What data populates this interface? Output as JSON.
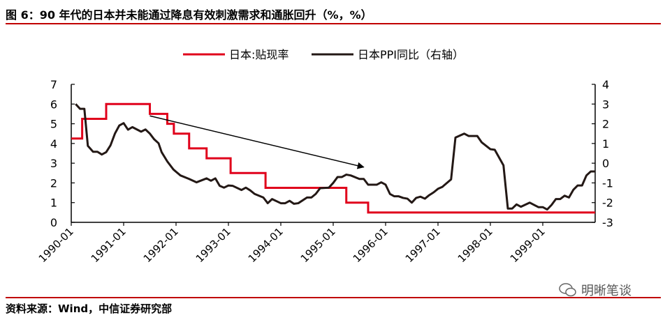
{
  "title": "图 6：90 年代的日本并未能通过降息有效刺激需求和通胀回升（%，%）",
  "source": "资料来源：Wind，中信证券研究部",
  "watermark": "明晰笔谈",
  "colors": {
    "rate": "#e0001b",
    "ppi": "#231815",
    "rule": "#c00000"
  },
  "chart_data": {
    "type": "line",
    "title": "90 年代的日本并未能通过降息有效刺激需求和通胀回升",
    "x_unit": "months since 1990-01",
    "xlim": [
      0,
      120
    ],
    "x_tick_labels": [
      "1990-01",
      "1991-01",
      "1992-01",
      "1993-01",
      "1994-01",
      "1995-01",
      "1996-01",
      "1997-01",
      "1998-01",
      "1999-01"
    ],
    "left_axis": {
      "ylim": [
        0,
        7
      ],
      "ticks": [
        "0",
        "1",
        "2",
        "3",
        "4",
        "5",
        "6",
        "7"
      ]
    },
    "right_axis": {
      "ylim": [
        -3,
        4
      ],
      "ticks": [
        "-3",
        "-2",
        "-1",
        "0",
        "1",
        "2",
        "3",
        "4"
      ]
    },
    "legend": {
      "placement": "top-center",
      "items": [
        "日本:贴现率",
        "日本PPI同比（右轴）"
      ]
    },
    "series": [
      {
        "name": "日本:贴现率",
        "axis": "left",
        "step": true,
        "points": [
          [
            0,
            4.25
          ],
          [
            2.5,
            5.25
          ],
          [
            8,
            6.0
          ],
          [
            18,
            5.5
          ],
          [
            22,
            5.0
          ],
          [
            23.5,
            4.5
          ],
          [
            27,
            3.75
          ],
          [
            31,
            3.25
          ],
          [
            36.5,
            2.5
          ],
          [
            44.5,
            1.75
          ],
          [
            63,
            1.0
          ],
          [
            68,
            0.5
          ],
          [
            120,
            0.5
          ]
        ]
      },
      {
        "name": "日本PPI同比（右轴）",
        "axis": "right",
        "step": false,
        "points": [
          [
            1,
            3.0
          ],
          [
            2,
            2.76
          ],
          [
            3,
            2.76
          ],
          [
            3.8,
            0.88
          ],
          [
            5,
            0.58
          ],
          [
            6,
            0.58
          ],
          [
            7,
            0.44
          ],
          [
            8,
            0.56
          ],
          [
            9,
            0.91
          ],
          [
            10,
            1.5
          ],
          [
            11,
            1.91
          ],
          [
            12,
            2.03
          ],
          [
            13,
            1.7
          ],
          [
            14,
            1.83
          ],
          [
            16,
            1.6
          ],
          [
            17,
            1.71
          ],
          [
            18,
            1.5
          ],
          [
            19,
            1.21
          ],
          [
            20,
            1.01
          ],
          [
            20.7,
            0.56
          ],
          [
            22,
            0.09
          ],
          [
            23.4,
            -0.32
          ],
          [
            25,
            -0.62
          ],
          [
            27,
            -0.8
          ],
          [
            28.7,
            -0.97
          ],
          [
            31,
            -0.77
          ],
          [
            32,
            -0.89
          ],
          [
            33,
            -0.77
          ],
          [
            34,
            -1.15
          ],
          [
            35,
            -1.24
          ],
          [
            36,
            -1.13
          ],
          [
            37,
            -1.15
          ],
          [
            39,
            -1.36
          ],
          [
            40,
            -1.24
          ],
          [
            41,
            -1.38
          ],
          [
            42,
            -1.56
          ],
          [
            44,
            -1.74
          ],
          [
            45,
            -2.03
          ],
          [
            46,
            -1.82
          ],
          [
            48,
            -2.03
          ],
          [
            49,
            -2.03
          ],
          [
            50,
            -1.91
          ],
          [
            51,
            -2.06
          ],
          [
            52,
            -2.03
          ],
          [
            54,
            -1.74
          ],
          [
            55,
            -1.74
          ],
          [
            56,
            -1.56
          ],
          [
            57,
            -1.27
          ],
          [
            59,
            -1.24
          ],
          [
            60,
            -1.0
          ],
          [
            61,
            -0.7
          ],
          [
            62,
            -0.7
          ],
          [
            63,
            -0.58
          ],
          [
            64,
            -0.62
          ],
          [
            66,
            -0.8
          ],
          [
            67,
            -0.8
          ],
          [
            68,
            -1.09
          ],
          [
            70,
            -1.09
          ],
          [
            71,
            -0.97
          ],
          [
            72,
            -1.09
          ],
          [
            73,
            -1.56
          ],
          [
            74,
            -1.68
          ],
          [
            75,
            -1.68
          ],
          [
            76,
            -1.76
          ],
          [
            77,
            -1.8
          ],
          [
            78,
            -2.0
          ],
          [
            79,
            -1.76
          ],
          [
            80,
            -1.7
          ],
          [
            81,
            -1.8
          ],
          [
            82,
            -1.62
          ],
          [
            83,
            -1.48
          ],
          [
            84,
            -1.3
          ],
          [
            85,
            -1.2
          ],
          [
            87,
            -0.82
          ],
          [
            88,
            1.3
          ],
          [
            90,
            1.5
          ],
          [
            91,
            1.38
          ],
          [
            93,
            1.38
          ],
          [
            94,
            1.06
          ],
          [
            96,
            0.71
          ],
          [
            97,
            0.68
          ],
          [
            99,
            -0.11
          ],
          [
            100,
            -2.3
          ],
          [
            101,
            -2.3
          ],
          [
            102,
            -2.09
          ],
          [
            103,
            -2.21
          ],
          [
            105,
            -2.0
          ],
          [
            107,
            -2.23
          ],
          [
            108,
            -2.23
          ],
          [
            109,
            -2.35
          ],
          [
            110,
            -2.12
          ],
          [
            111,
            -1.82
          ],
          [
            112,
            -1.82
          ],
          [
            113,
            -1.65
          ],
          [
            114,
            -1.74
          ],
          [
            115,
            -1.35
          ],
          [
            116,
            -1.13
          ],
          [
            117,
            -1.13
          ],
          [
            118,
            -0.62
          ],
          [
            119,
            -0.42
          ],
          [
            120,
            -0.42
          ]
        ]
      }
    ],
    "annotations": [
      {
        "type": "arrow",
        "from": [
          18,
          5.4
        ],
        "to": [
          67,
          2.8
        ],
        "axis": "left"
      }
    ]
  }
}
